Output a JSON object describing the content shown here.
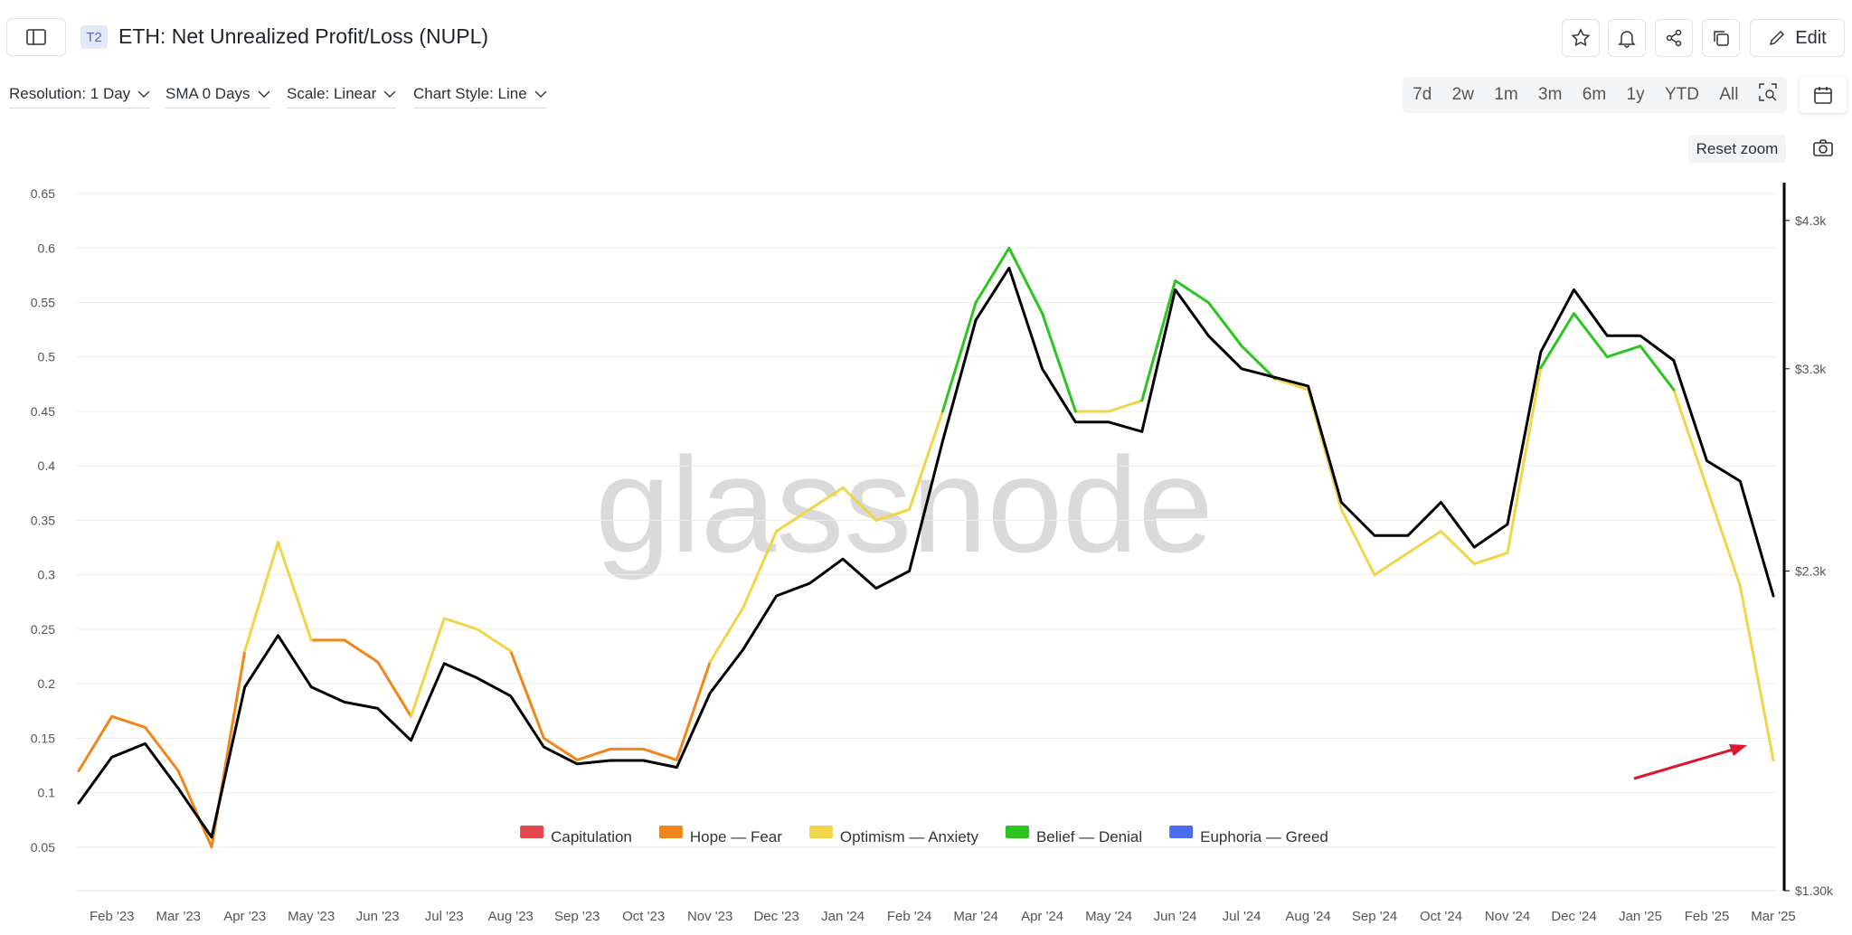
{
  "ui": {
    "badge": "T2",
    "title": "ETH: Net Unrealized Profit/Loss (NUPL)",
    "edit": "Edit",
    "controls": [
      "Resolution: 1 Day",
      "SMA 0 Days",
      "Scale: Linear",
      "Chart Style: Line"
    ],
    "ranges": [
      "7d",
      "2w",
      "1m",
      "3m",
      "6m",
      "1y",
      "YTD",
      "All"
    ],
    "reset_zoom": "Reset zoom",
    "watermark": "glassnode"
  },
  "chart_data": {
    "type": "line",
    "categories": [
      null,
      "Feb '23",
      null,
      "Mar '23",
      null,
      "Apr '23",
      null,
      "May '23",
      null,
      "Jun '23",
      null,
      "Jul '23",
      null,
      "Aug '23",
      null,
      "Sep '23",
      null,
      "Oct '23",
      null,
      "Nov '23",
      null,
      "Dec '23",
      null,
      "Jan '24",
      null,
      "Feb '24",
      null,
      "Mar '24",
      null,
      "Apr '24",
      null,
      "May '24",
      null,
      "Jun '24",
      null,
      "Jul '24",
      null,
      "Aug '24",
      null,
      "Sep '24",
      null,
      "Oct '24",
      null,
      "Nov '24",
      null,
      "Dec '24",
      null,
      "Jan '25",
      null,
      "Feb '25",
      null,
      "Mar '25"
    ],
    "series": [
      {
        "name": "Capitulation",
        "color": "#e5484d",
        "values": [
          null,
          null,
          null,
          null,
          null,
          null,
          null,
          null,
          null,
          null,
          null,
          null,
          null,
          null,
          null,
          null,
          null,
          null,
          null,
          null,
          null,
          null,
          null,
          null,
          null,
          null,
          null,
          null,
          null,
          null,
          null,
          null,
          null,
          null,
          null,
          null,
          null,
          null,
          null,
          null,
          null,
          null,
          null,
          null,
          null,
          null,
          null,
          null,
          null,
          null,
          null,
          null
        ]
      },
      {
        "name": "Hope — Fear",
        "color": "#f0861a",
        "values": [
          0.12,
          0.17,
          0.16,
          0.12,
          0.05,
          0.23,
          null,
          0.24,
          0.24,
          0.22,
          0.17,
          null,
          null,
          0.23,
          0.15,
          0.13,
          0.14,
          0.14,
          0.13,
          0.22,
          null,
          null,
          null,
          null,
          null,
          null,
          null,
          null,
          null,
          null,
          null,
          null,
          null,
          null,
          null,
          null,
          null,
          null,
          null,
          null,
          null,
          null,
          null,
          null,
          null,
          null,
          null,
          null,
          null,
          null,
          null,
          0.13
        ]
      },
      {
        "name": "Optimism — Anxiety",
        "color": "#f1d548",
        "values": [
          null,
          null,
          null,
          null,
          null,
          0.23,
          0.33,
          0.24,
          null,
          null,
          0.17,
          0.26,
          0.25,
          0.23,
          null,
          null,
          null,
          null,
          null,
          0.22,
          0.27,
          0.34,
          0.36,
          0.38,
          0.35,
          0.36,
          0.45,
          null,
          null,
          null,
          0.45,
          0.45,
          0.46,
          null,
          null,
          null,
          0.48,
          0.47,
          0.36,
          0.3,
          0.32,
          0.34,
          0.31,
          0.32,
          0.49,
          null,
          null,
          null,
          0.47,
          0.38,
          0.29,
          0.13
        ]
      },
      {
        "name": "Belief — Denial",
        "color": "#2cc41f",
        "values": [
          null,
          null,
          null,
          null,
          null,
          null,
          null,
          null,
          null,
          null,
          null,
          null,
          null,
          null,
          null,
          null,
          null,
          null,
          null,
          null,
          null,
          null,
          null,
          null,
          null,
          null,
          0.45,
          0.55,
          0.6,
          0.54,
          0.45,
          null,
          0.46,
          0.57,
          0.55,
          0.51,
          0.48,
          null,
          null,
          null,
          null,
          null,
          null,
          null,
          0.49,
          0.54,
          0.5,
          0.51,
          0.47,
          null,
          null,
          null
        ]
      },
      {
        "name": "Euphoria — Greed",
        "color": "#4a6cf0",
        "values": [
          null,
          null,
          null,
          null,
          null,
          null,
          null,
          null,
          null,
          null,
          null,
          null,
          null,
          null,
          null,
          null,
          null,
          null,
          null,
          null,
          null,
          null,
          null,
          null,
          null,
          null,
          null,
          null,
          null,
          null,
          null,
          null,
          null,
          null,
          null,
          null,
          null,
          null,
          null,
          null,
          null,
          null,
          null,
          null,
          null,
          null,
          null,
          null,
          null,
          null,
          null,
          null
        ]
      },
      {
        "color": "#000000",
        "axis": "y2",
        "values": [
          1520,
          1650,
          1690,
          1560,
          1430,
          1870,
          2050,
          1870,
          1820,
          1800,
          1700,
          1950,
          1900,
          1840,
          1680,
          1630,
          1640,
          1640,
          1620,
          1850,
          2000,
          2200,
          2250,
          2350,
          2230,
          2300,
          2900,
          3600,
          3950,
          3300,
          3000,
          3000,
          2950,
          3800,
          3500,
          3300,
          3250,
          3200,
          2600,
          2450,
          2450,
          2600,
          2400,
          2500,
          3400,
          3800,
          3500,
          3500,
          3350,
          2800,
          2700,
          2200
        ]
      }
    ],
    "ylim": [
      0.01,
      0.66
    ],
    "yticks": [
      0.05,
      0.1,
      0.15,
      0.2,
      0.25,
      0.3,
      0.35,
      0.4,
      0.45,
      0.5,
      0.55,
      0.6,
      0.65
    ],
    "y2lim": [
      1300,
      4600
    ],
    "y2scale": "log",
    "y2ticks": [
      {
        "value": 1300,
        "label": "$1.30k"
      },
      {
        "value": 2300,
        "label": "$2.3k"
      },
      {
        "value": 3300,
        "label": "$3.3k"
      },
      {
        "value": 4300,
        "label": "$4.3k"
      }
    ],
    "grid": true,
    "legend": "bottom"
  }
}
